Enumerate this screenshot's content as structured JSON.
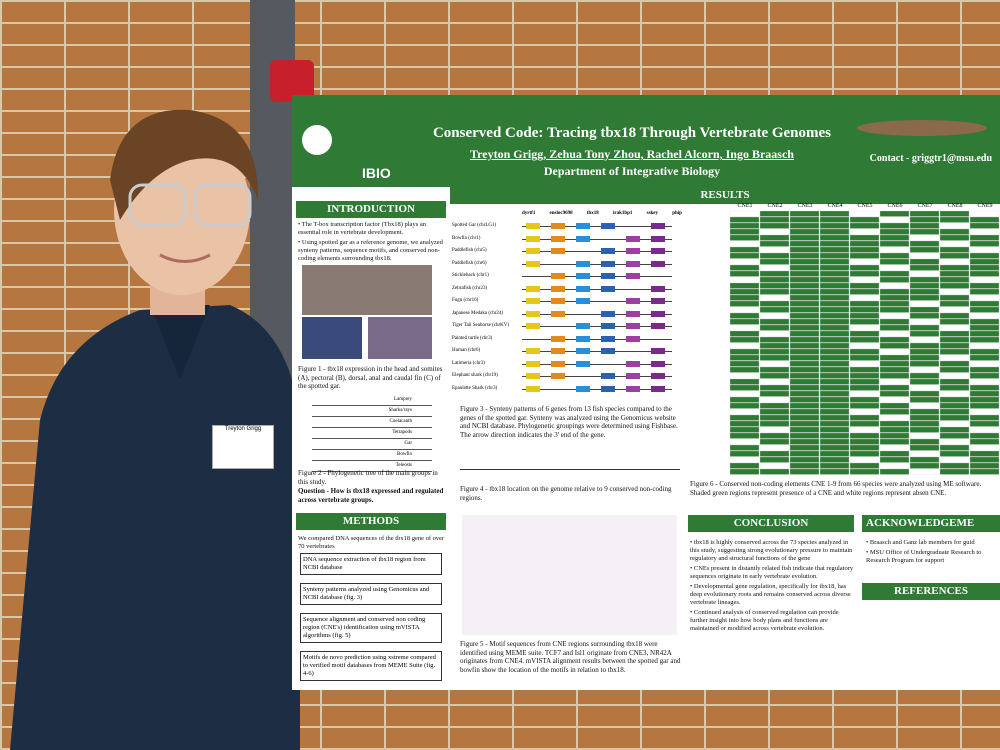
{
  "name_tag": "Treyton Grigg",
  "poster": {
    "logo": "IBIO",
    "title": "Conserved Code: Tracing tbx18 Through Vertebrate Genomes",
    "authors": "Treyton Grigg, Zehua Tony Zhou, Rachel Alcorn, Ingo Braasch",
    "department": "Department of Integrative Biology",
    "contact": "Contact - griggtr1@msu.edu",
    "introduction": {
      "heading": "INTRODUCTION",
      "bullets": [
        "The T-box transcription factor (Tbx18) plays an essential role in vertebrate development.",
        "Using spotted gar as a reference genome, we analyzed synteny patterns, sequence motifs, and conserved non-coding elements surrounding tbx18."
      ],
      "figure1": "Figure 1 - tbx18 expression in the head and somites (A), pectoral (B), dorsal, anal and caudal fin (C) of the spotted gar.",
      "tree_taxa": [
        "Lamprey",
        "Sharks/rays",
        "Coelacanth",
        "Tetrapods",
        "Gar",
        "Bowfin",
        "Teleosts"
      ],
      "figure2": "Figure 2 - Phylogenetic tree of the main groups in this study.",
      "question": "Question - How is tbx18 expressed and regulated across vertebrate groups."
    },
    "methods": {
      "heading": "METHODS",
      "intro": "We compared DNA sequences of the tbx18 gene of over 70 vertebrates",
      "steps": [
        "DNA sequence extraction of tbx18 region from NCBI database",
        "Synteny patterns analyzed using Genomicus and NCBI database (fig. 3)",
        "Sequence alignment and conserved non coding region (CNE's) identification using mVISTA algorithms (fig. 5)",
        "Motifs de novo prediction using xstreme compared to verified motif databases from MEME Suite (fig. 4-6)"
      ]
    },
    "results": {
      "heading": "RESULTS",
      "genes": [
        "dyrtf1",
        "ensloc9698",
        "tbx18",
        "irak1bp1",
        "sskey",
        "phip"
      ],
      "species": [
        "Spotted Gar (chrLG1)",
        "Bowfin (chr1)",
        "Paddlefish (chr5)",
        "Paddlefish (chr6)",
        "Stickleback (chr1)",
        "Zebrafish (chr23)",
        "Fugu (chr16)",
        "Japanese Medaka (chr24)",
        "Tiger Tail Seahorse (chrKV)",
        "Painted turtle (chr3)",
        "Human (chr6)",
        "Latimeria (chr3)",
        "Elephant shark (chr19)",
        "Epaulette Shark (chr3)"
      ],
      "figure3": "Figure 3 - Synteny patterns of 6 genes from 13 fish species compared to the genes of the spotted gar. Synteny was analyzed using the Genomicus website and NCBI database. Phylogenetic groupings were determined using Fishbase. The arrow direction indicates the 3' end of the gene.",
      "figure4": "Figure 4 - tbx18 location on the genome relative to 9 conserved non-coding regions.",
      "cne_labels": [
        "CNE1",
        "CNE2",
        "CNE3",
        "CNE4",
        "CNE5",
        "CNE6",
        "CNE7",
        "CNE8",
        "CNE9"
      ],
      "figure5": "Figure 5 - Motif sequences from CNE regions surrounding tbx18 were identified using MEME suite. TCF7 and Isl1 originate from CNE3, NR42A originates from CNE4. mVISTA alignment results between the spotted gar and bowfin show the location of the motifs in relation to tbx18.",
      "figure6": "Figure 6 - Conserved non-coding elements CNE 1-9 from 66 species were analyzed using ME software. Shaded green regions represent presence of a CNE and white regions represent absen CNE."
    },
    "conclusion": {
      "heading": "CONCLUSION",
      "bullets": [
        "tbx18 is highly conserved across the 73 species analyzed in this study, suggesting strong evolutionary pressure to maintain regulatory and structural functions of the gene",
        "CNEs present in distantly related fish indicate that regulatory sequences originate in early vertebrate evolution.",
        "Developmental gene regulation, specifically for tbx18, has deep evolutionary roots and remains conserved across diverse vertebrate lineages.",
        "Continued analysis of conserved regulation can provide further insight into how body plans and functions are maintained or modified across vertebrate evolution."
      ]
    },
    "acknowledgements": {
      "heading": "ACKNOWLEDGEME",
      "bullets": [
        "Braasch and Ganz lab members for guid",
        "MSU Office of Undergraduate Research to Research Program for support"
      ]
    },
    "references": {
      "heading": "REFERENCES"
    }
  }
}
